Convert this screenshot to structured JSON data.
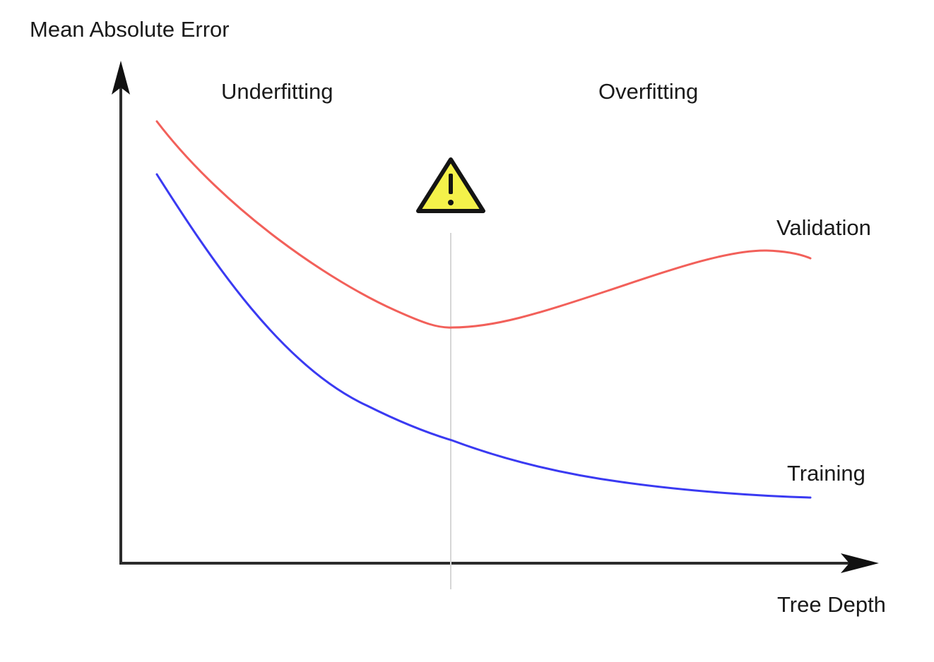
{
  "chart_data": {
    "type": "line",
    "ylabel": "Mean Absolute Error",
    "xlabel": "Tree Depth",
    "region_labels": [
      "Underfitting",
      "Overfitting"
    ],
    "series": [
      {
        "name": "Validation",
        "color": "#f2605a"
      },
      {
        "name": "Training",
        "color": "#3a3af2"
      }
    ],
    "marker": {
      "icon": "warning-icon",
      "color": "#f4f14a"
    },
    "grid": false,
    "ticks": false
  }
}
